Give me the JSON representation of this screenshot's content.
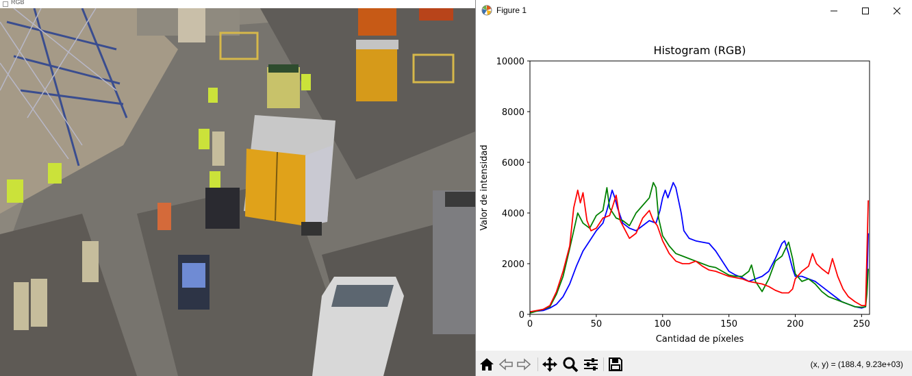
{
  "image_window": {
    "title": "RGB"
  },
  "figure_window": {
    "title": "Figure 1",
    "controls": [
      "minimize",
      "maximize",
      "close"
    ]
  },
  "toolbar": {
    "buttons": [
      "home-icon",
      "back-arrow-icon",
      "forward-arrow-icon",
      "pan-icon",
      "zoom-icon",
      "configure-subplots-icon",
      "save-icon"
    ],
    "coords_text": "(x, y) = (188.4, 9.23e+03)"
  },
  "chart_data": {
    "type": "line",
    "title": "Histogram (RGB)",
    "xlabel": "Cantidad de píxeles",
    "ylabel": "Valor de intensidad",
    "xlim": [
      0,
      256
    ],
    "ylim": [
      0,
      10000
    ],
    "xticks": [
      0,
      50,
      100,
      150,
      200,
      250
    ],
    "yticks": [
      0,
      2000,
      4000,
      6000,
      8000,
      10000
    ],
    "grid": false,
    "series": [
      {
        "color": "#0000ff",
        "points": [
          [
            0,
            100
          ],
          [
            10,
            150
          ],
          [
            15,
            250
          ],
          [
            20,
            400
          ],
          [
            25,
            700
          ],
          [
            30,
            1200
          ],
          [
            35,
            1900
          ],
          [
            40,
            2500
          ],
          [
            45,
            2900
          ],
          [
            50,
            3300
          ],
          [
            55,
            3600
          ],
          [
            58,
            4100
          ],
          [
            60,
            4500
          ],
          [
            62,
            4900
          ],
          [
            64,
            4600
          ],
          [
            66,
            4200
          ],
          [
            70,
            3600
          ],
          [
            75,
            3400
          ],
          [
            80,
            3300
          ],
          [
            85,
            3500
          ],
          [
            90,
            3700
          ],
          [
            95,
            3600
          ],
          [
            98,
            4100
          ],
          [
            100,
            4600
          ],
          [
            102,
            4900
          ],
          [
            104,
            4600
          ],
          [
            108,
            5200
          ],
          [
            110,
            5000
          ],
          [
            114,
            4000
          ],
          [
            116,
            3300
          ],
          [
            120,
            3000
          ],
          [
            125,
            2900
          ],
          [
            130,
            2850
          ],
          [
            135,
            2800
          ],
          [
            140,
            2500
          ],
          [
            145,
            2100
          ],
          [
            150,
            1700
          ],
          [
            155,
            1550
          ],
          [
            160,
            1450
          ],
          [
            165,
            1300
          ],
          [
            170,
            1400
          ],
          [
            175,
            1500
          ],
          [
            180,
            1700
          ],
          [
            185,
            2200
          ],
          [
            190,
            2800
          ],
          [
            192,
            2900
          ],
          [
            195,
            2400
          ],
          [
            198,
            1800
          ],
          [
            200,
            1500
          ],
          [
            205,
            1500
          ],
          [
            210,
            1400
          ],
          [
            215,
            1300
          ],
          [
            220,
            1100
          ],
          [
            225,
            900
          ],
          [
            230,
            700
          ],
          [
            235,
            500
          ],
          [
            240,
            400
          ],
          [
            245,
            300
          ],
          [
            250,
            250
          ],
          [
            253,
            300
          ],
          [
            254,
            1200
          ],
          [
            255,
            3200
          ]
        ]
      },
      {
        "color": "#008000",
        "points": [
          [
            0,
            50
          ],
          [
            10,
            200
          ],
          [
            15,
            300
          ],
          [
            20,
            800
          ],
          [
            25,
            1500
          ],
          [
            30,
            2600
          ],
          [
            33,
            3300
          ],
          [
            36,
            4000
          ],
          [
            40,
            3600
          ],
          [
            45,
            3400
          ],
          [
            50,
            3900
          ],
          [
            55,
            4100
          ],
          [
            58,
            5000
          ],
          [
            60,
            4200
          ],
          [
            65,
            3800
          ],
          [
            70,
            3700
          ],
          [
            75,
            3500
          ],
          [
            80,
            4000
          ],
          [
            85,
            4300
          ],
          [
            90,
            4600
          ],
          [
            93,
            5200
          ],
          [
            95,
            5000
          ],
          [
            97,
            3800
          ],
          [
            100,
            3100
          ],
          [
            105,
            2700
          ],
          [
            110,
            2400
          ],
          [
            115,
            2300
          ],
          [
            120,
            2200
          ],
          [
            125,
            2100
          ],
          [
            130,
            2000
          ],
          [
            135,
            1900
          ],
          [
            140,
            1850
          ],
          [
            145,
            1700
          ],
          [
            150,
            1550
          ],
          [
            155,
            1500
          ],
          [
            160,
            1500
          ],
          [
            165,
            1700
          ],
          [
            167,
            1950
          ],
          [
            170,
            1300
          ],
          [
            175,
            900
          ],
          [
            180,
            1400
          ],
          [
            185,
            2100
          ],
          [
            190,
            2300
          ],
          [
            195,
            2850
          ],
          [
            198,
            2200
          ],
          [
            200,
            1600
          ],
          [
            205,
            1300
          ],
          [
            210,
            1400
          ],
          [
            215,
            1200
          ],
          [
            220,
            900
          ],
          [
            225,
            700
          ],
          [
            230,
            600
          ],
          [
            235,
            500
          ],
          [
            240,
            400
          ],
          [
            245,
            300
          ],
          [
            250,
            280
          ],
          [
            253,
            300
          ],
          [
            254,
            800
          ],
          [
            255,
            1800
          ]
        ]
      },
      {
        "color": "#ff0000",
        "points": [
          [
            0,
            100
          ],
          [
            10,
            200
          ],
          [
            15,
            350
          ],
          [
            20,
            900
          ],
          [
            25,
            1700
          ],
          [
            30,
            2700
          ],
          [
            33,
            4200
          ],
          [
            36,
            4900
          ],
          [
            38,
            4400
          ],
          [
            40,
            4800
          ],
          [
            43,
            3700
          ],
          [
            46,
            3300
          ],
          [
            50,
            3400
          ],
          [
            55,
            3800
          ],
          [
            60,
            3900
          ],
          [
            62,
            4200
          ],
          [
            65,
            4700
          ],
          [
            68,
            3700
          ],
          [
            72,
            3300
          ],
          [
            75,
            3000
          ],
          [
            80,
            3200
          ],
          [
            85,
            3800
          ],
          [
            90,
            4100
          ],
          [
            93,
            3700
          ],
          [
            96,
            3500
          ],
          [
            100,
            2900
          ],
          [
            105,
            2400
          ],
          [
            110,
            2100
          ],
          [
            115,
            2000
          ],
          [
            120,
            2000
          ],
          [
            125,
            2100
          ],
          [
            130,
            1900
          ],
          [
            135,
            1750
          ],
          [
            140,
            1700
          ],
          [
            145,
            1600
          ],
          [
            150,
            1500
          ],
          [
            155,
            1450
          ],
          [
            160,
            1400
          ],
          [
            165,
            1300
          ],
          [
            170,
            1250
          ],
          [
            175,
            1200
          ],
          [
            180,
            1100
          ],
          [
            185,
            950
          ],
          [
            190,
            850
          ],
          [
            195,
            850
          ],
          [
            198,
            1000
          ],
          [
            200,
            1400
          ],
          [
            205,
            1700
          ],
          [
            210,
            1900
          ],
          [
            213,
            2400
          ],
          [
            216,
            2000
          ],
          [
            220,
            1800
          ],
          [
            225,
            1600
          ],
          [
            228,
            2200
          ],
          [
            232,
            1500
          ],
          [
            236,
            1000
          ],
          [
            240,
            700
          ],
          [
            245,
            500
          ],
          [
            250,
            350
          ],
          [
            253,
            350
          ],
          [
            254,
            2300
          ],
          [
            255,
            4500
          ]
        ]
      }
    ]
  }
}
